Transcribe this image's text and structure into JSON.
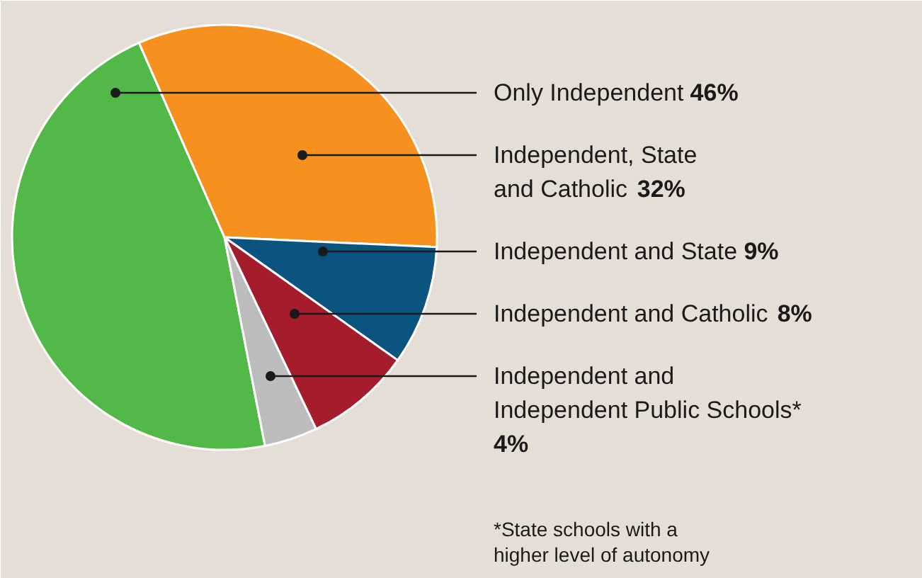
{
  "chart_data": {
    "type": "pie",
    "categories": [
      "Only Independent",
      "Independent, State\nand Catholic",
      "Independent and State",
      "Independent and Catholic",
      "Independent and\nIndependent Public Schools*"
    ],
    "values": [
      46,
      32,
      9,
      8,
      4
    ],
    "value_labels": [
      "46%",
      "32%",
      "9%",
      "8%",
      "4%"
    ],
    "colors": [
      "#52b848",
      "#f6901e",
      "#0b5480",
      "#a51d2d",
      "#bcbcbc"
    ],
    "annotations": [
      "*State schools with a\nhigher level of autonomy"
    ]
  }
}
